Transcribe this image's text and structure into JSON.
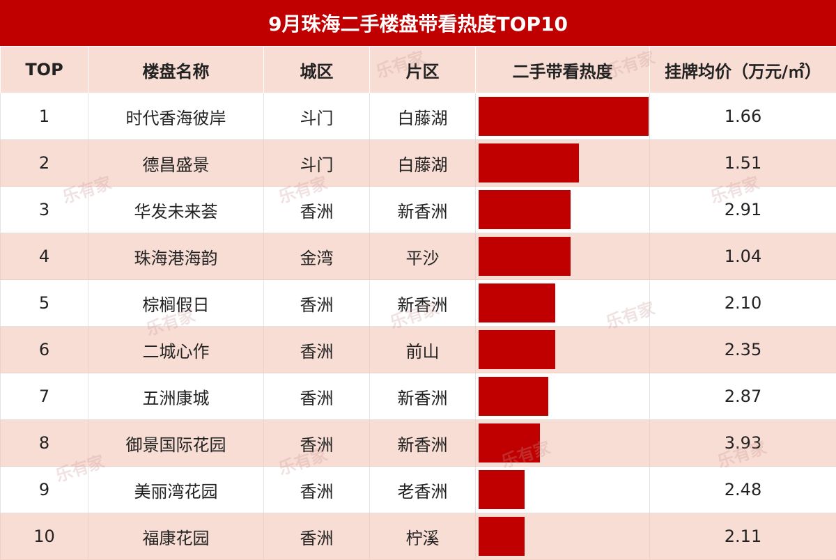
{
  "title": "9月珠海二手楼盘带看热度TOP10",
  "accent_color": "#c00000",
  "stripe_color": "#f8ddd4",
  "watermark_text": "乐有家",
  "headers": {
    "rank": "TOP",
    "name": "楼盘名称",
    "district": "城区",
    "area": "片区",
    "heat": "二手带看热度",
    "price": "挂牌均价（万元/㎡）"
  },
  "chart_data": {
    "type": "bar",
    "title": "9月珠海二手楼盘带看热度TOP10",
    "categories": [
      "时代香海彼岸",
      "德昌盛景",
      "华发未来荟",
      "珠海港海韵",
      "棕榈假日",
      "二城心作",
      "五洲康城",
      "御景国际花园",
      "美丽湾花园",
      "福康花园"
    ],
    "series": [
      {
        "name": "二手带看热度",
        "values": [
          100,
          59,
          54,
          54,
          45,
          45,
          41,
          36,
          27,
          27
        ]
      }
    ],
    "xlim": [
      0,
      100
    ]
  },
  "rows": [
    {
      "rank": "1",
      "name": "时代香海彼岸",
      "district": "斗门",
      "area": "白藤湖",
      "price": "1.66"
    },
    {
      "rank": "2",
      "name": "德昌盛景",
      "district": "斗门",
      "area": "白藤湖",
      "price": "1.51"
    },
    {
      "rank": "3",
      "name": "华发未来荟",
      "district": "香洲",
      "area": "新香洲",
      "price": "2.91"
    },
    {
      "rank": "4",
      "name": "珠海港海韵",
      "district": "金湾",
      "area": "平沙",
      "price": "1.04"
    },
    {
      "rank": "5",
      "name": "棕榈假日",
      "district": "香洲",
      "area": "新香洲",
      "price": "2.10"
    },
    {
      "rank": "6",
      "name": "二城心作",
      "district": "香洲",
      "area": "前山",
      "price": "2.35"
    },
    {
      "rank": "7",
      "name": "五洲康城",
      "district": "香洲",
      "area": "新香洲",
      "price": "2.87"
    },
    {
      "rank": "8",
      "name": "御景国际花园",
      "district": "香洲",
      "area": "新香洲",
      "price": "3.93"
    },
    {
      "rank": "9",
      "name": "美丽湾花园",
      "district": "香洲",
      "area": "老香洲",
      "price": "2.48"
    },
    {
      "rank": "10",
      "name": "福康花园",
      "district": "香洲",
      "area": "柠溪",
      "price": "2.11"
    }
  ]
}
